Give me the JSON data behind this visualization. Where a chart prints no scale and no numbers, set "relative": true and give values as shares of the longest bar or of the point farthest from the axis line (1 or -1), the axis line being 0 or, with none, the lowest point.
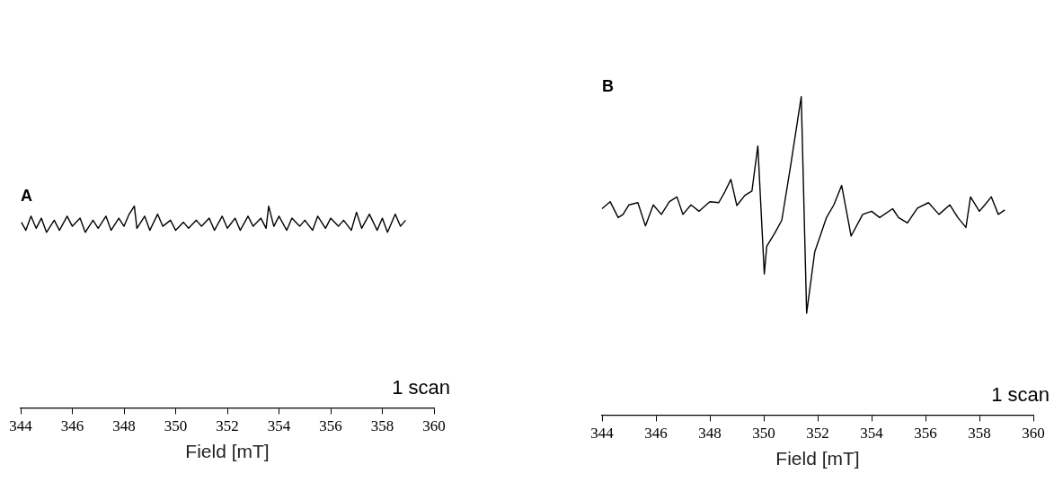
{
  "chart_data": [
    {
      "type": "line",
      "title": "A",
      "xlabel": "Field [mT]",
      "annotations": [
        "1 scan"
      ],
      "relative": true,
      "marker": "none",
      "color": "#000000",
      "xlim": [
        344,
        360
      ],
      "xticks": [
        344,
        346,
        348,
        350,
        352,
        354,
        356,
        358,
        360
      ],
      "x": [
        344.03,
        344.2,
        344.4,
        344.6,
        344.8,
        345.0,
        345.3,
        345.5,
        345.8,
        346.0,
        346.3,
        346.5,
        346.8,
        347.0,
        347.3,
        347.5,
        347.8,
        348.0,
        348.2,
        348.4,
        348.5,
        348.8,
        349.0,
        349.3,
        349.5,
        349.8,
        350.0,
        350.3,
        350.5,
        350.8,
        351.0,
        351.3,
        351.5,
        351.8,
        352.0,
        352.3,
        352.5,
        352.8,
        353.0,
        353.3,
        353.5,
        353.6,
        353.8,
        354.0,
        354.3,
        354.5,
        354.8,
        355.0,
        355.3,
        355.5,
        355.8,
        356.0,
        356.3,
        356.5,
        356.8,
        357.0,
        357.2,
        357.5,
        357.8,
        358.0,
        358.2,
        358.5,
        358.7,
        358.9
      ],
      "values": [
        0.92,
        0.88,
        0.95,
        0.89,
        0.94,
        0.87,
        0.93,
        0.88,
        0.95,
        0.9,
        0.94,
        0.87,
        0.93,
        0.89,
        0.95,
        0.88,
        0.94,
        0.9,
        0.96,
        1.0,
        0.89,
        0.95,
        0.88,
        0.96,
        0.9,
        0.93,
        0.88,
        0.92,
        0.89,
        0.93,
        0.9,
        0.94,
        0.88,
        0.95,
        0.89,
        0.94,
        0.88,
        0.95,
        0.9,
        0.94,
        0.89,
        1.0,
        0.9,
        0.95,
        0.88,
        0.94,
        0.9,
        0.93,
        0.88,
        0.95,
        0.89,
        0.94,
        0.9,
        0.93,
        0.88,
        0.97,
        0.89,
        0.96,
        0.88,
        0.94,
        0.87,
        0.96,
        0.9,
        0.93
      ]
    },
    {
      "type": "line",
      "title": "B",
      "xlabel": "Field [mT]",
      "annotations": [
        "1 scan"
      ],
      "relative": true,
      "marker": "none",
      "color": "#000000",
      "xlim": [
        344,
        360
      ],
      "xticks": [
        344,
        346,
        348,
        350,
        352,
        354,
        356,
        358,
        360
      ],
      "x": [
        344.0,
        344.3,
        344.6,
        344.78,
        345.0,
        345.33,
        345.61,
        345.9,
        346.2,
        346.5,
        346.78,
        347.0,
        347.3,
        347.6,
        348.0,
        348.33,
        348.55,
        348.78,
        349.0,
        349.3,
        349.56,
        349.78,
        350.02,
        350.11,
        350.4,
        350.67,
        351.0,
        351.39,
        351.59,
        351.89,
        352.33,
        352.6,
        352.89,
        353.24,
        353.67,
        354.0,
        354.3,
        354.78,
        355.0,
        355.33,
        355.7,
        356.11,
        356.5,
        356.9,
        357.2,
        357.5,
        357.67,
        358.0,
        358.2,
        358.44,
        358.7,
        358.94
      ],
      "values": [
        0.648,
        0.67,
        0.62,
        0.63,
        0.66,
        0.667,
        0.594,
        0.66,
        0.63,
        0.67,
        0.685,
        0.63,
        0.66,
        0.64,
        0.67,
        0.667,
        0.7,
        0.74,
        0.658,
        0.69,
        0.703,
        0.845,
        0.443,
        0.53,
        0.57,
        0.612,
        0.785,
        1.0,
        0.32,
        0.512,
        0.621,
        0.66,
        0.721,
        0.562,
        0.63,
        0.64,
        0.62,
        0.648,
        0.62,
        0.603,
        0.65,
        0.667,
        0.63,
        0.66,
        0.62,
        0.589,
        0.685,
        0.64,
        0.66,
        0.685,
        0.63,
        0.644
      ]
    }
  ]
}
